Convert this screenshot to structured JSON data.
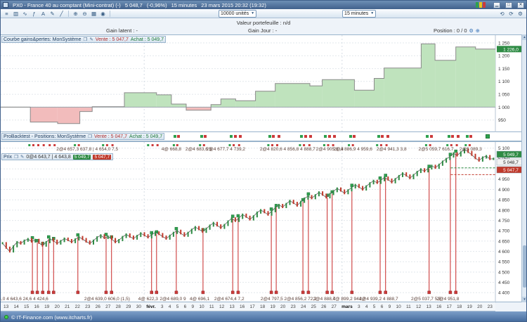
{
  "window": {
    "title": "PX0 - France 40 au comptant (Mini-contrat) (-)",
    "price": "5 048,7",
    "change": "(-0,96%)",
    "timeframe": "15 minutes",
    "datetime": "23 mars 2015 20:32 (19:32)",
    "brand_colors": [
      "#2fa14f",
      "#e8c31f",
      "#cc3b3b"
    ]
  },
  "toolbar": {
    "units_value": "10000 unités",
    "timeframe_value": "15 minutes"
  },
  "infobar": {
    "portfolio_label": "Valeur portefeuille : n/d",
    "gain_latent_label": "Gain latent : -",
    "gain_day_label": "Gain Jour : -",
    "position_label": "Position : 0 / 0"
  },
  "equity_panel": {
    "title": "Courbe gains&pertes: MonSystème",
    "vente_label": "Vente : 5 047,7",
    "achat_label": "Achat : 5 049,7"
  },
  "positions_panel": {
    "title": "ProBacktest - Positions: MonSystème",
    "vente_label": "Vente : 5 047,7",
    "achat_label": "Achat : 5 049,7",
    "markers": [
      [
        0.058,
        "g"
      ],
      [
        0.066,
        "r"
      ],
      [
        0.076,
        "r"
      ],
      [
        0.087,
        "r"
      ],
      [
        0.099,
        "r"
      ],
      [
        0.109,
        "r"
      ],
      [
        0.15,
        "g"
      ],
      [
        0.158,
        "r"
      ],
      [
        0.207,
        "g"
      ],
      [
        0.215,
        "r"
      ],
      [
        0.226,
        "r"
      ],
      [
        0.298,
        "g"
      ],
      [
        0.307,
        "r"
      ],
      [
        0.317,
        "r"
      ],
      [
        0.35,
        "g"
      ],
      [
        0.357,
        "r"
      ],
      [
        0.403,
        "g"
      ],
      [
        0.411,
        "r"
      ],
      [
        0.463,
        "g"
      ],
      [
        0.471,
        "r"
      ],
      [
        0.482,
        "r"
      ],
      [
        0.541,
        "g"
      ],
      [
        0.549,
        "r"
      ],
      [
        0.559,
        "r"
      ],
      [
        0.605,
        "g"
      ],
      [
        0.613,
        "r"
      ],
      [
        0.624,
        "r"
      ],
      [
        0.654,
        "g"
      ],
      [
        0.662,
        "r"
      ],
      [
        0.672,
        "r"
      ],
      [
        0.704,
        "g"
      ],
      [
        0.712,
        "r"
      ],
      [
        0.761,
        "g"
      ],
      [
        0.769,
        "r"
      ],
      [
        0.78,
        "r"
      ],
      [
        0.86,
        "g"
      ],
      [
        0.868,
        "r"
      ],
      [
        0.903,
        "g"
      ],
      [
        0.911,
        "r"
      ],
      [
        0.922,
        "r"
      ],
      [
        0.94,
        "g"
      ],
      [
        0.948,
        "r"
      ]
    ]
  },
  "price_panel": {
    "title": "Prix",
    "quote": "0@4 643,7 | 4 643,8",
    "bid_badge": "5 047,7",
    "ask_badge": "5 049,7"
  },
  "status": {
    "copyright": "© IT-Finance.com (www.itcharts.fr)"
  },
  "chart_data": [
    {
      "type": "area",
      "title": "Courbe gains&pertes: MonSystème",
      "ylim": [
        900,
        1280
      ],
      "baseline": 1000,
      "grid": [
        950,
        1000,
        1050,
        1100,
        1150,
        1200,
        1250
      ],
      "yvals": [
        1250,
        1200,
        1150,
        1100,
        1050,
        1000,
        950
      ],
      "ylabels": [
        "1 250",
        "1 200",
        "1 150",
        "1 100",
        "1 050",
        "1 000",
        "950"
      ],
      "vgrid": [
        0.29,
        0.69
      ],
      "pos_color": "#bfe3bd",
      "neg_color": "#f2bcbc",
      "line_color": "#8a8a8a",
      "last_value": 1226,
      "last_label": "1 226,0",
      "steps": [
        [
          0,
          1000
        ],
        [
          0.06,
          1000
        ],
        [
          0.06,
          942
        ],
        [
          0.115,
          942
        ],
        [
          0.115,
          936
        ],
        [
          0.16,
          936
        ],
        [
          0.16,
          983
        ],
        [
          0.185,
          983
        ],
        [
          0.185,
          1002
        ],
        [
          0.25,
          1002
        ],
        [
          0.25,
          1056
        ],
        [
          0.315,
          1056
        ],
        [
          0.315,
          1048
        ],
        [
          0.345,
          1048
        ],
        [
          0.345,
          1012
        ],
        [
          0.375,
          1012
        ],
        [
          0.375,
          988
        ],
        [
          0.425,
          988
        ],
        [
          0.425,
          1010
        ],
        [
          0.445,
          1010
        ],
        [
          0.445,
          1032
        ],
        [
          0.475,
          1032
        ],
        [
          0.475,
          1025
        ],
        [
          0.515,
          1025
        ],
        [
          0.515,
          1062
        ],
        [
          0.555,
          1062
        ],
        [
          0.555,
          1092
        ],
        [
          0.625,
          1092
        ],
        [
          0.625,
          1083
        ],
        [
          0.65,
          1083
        ],
        [
          0.65,
          1107
        ],
        [
          0.715,
          1107
        ],
        [
          0.715,
          1066
        ],
        [
          0.755,
          1066
        ],
        [
          0.755,
          1112
        ],
        [
          0.775,
          1112
        ],
        [
          0.775,
          1152
        ],
        [
          0.85,
          1152
        ],
        [
          0.85,
          1246
        ],
        [
          0.878,
          1246
        ],
        [
          0.878,
          1182
        ],
        [
          0.92,
          1182
        ],
        [
          0.92,
          1234
        ],
        [
          0.96,
          1234
        ],
        [
          0.96,
          1226
        ],
        [
          1,
          1226
        ]
      ]
    },
    {
      "type": "candlestick",
      "title": "Prix — France 40 au comptant (Mini-contrat), 15 minutes",
      "ylim": [
        4350,
        5130
      ],
      "grid": [
        4400,
        4450,
        4500,
        4550,
        4600,
        4650,
        4700,
        4750,
        4800,
        4850,
        4900,
        4950,
        5000,
        5050,
        5100
      ],
      "yvals": [
        5100,
        5050,
        5000,
        4950,
        4900,
        4850,
        4800,
        4750,
        4700,
        4650,
        4600,
        4550,
        4500,
        4450,
        4400
      ],
      "ylabels": [
        "5 100",
        "5 050",
        "5 000",
        "4 950",
        "4 900",
        "4 850",
        "4 800",
        "4 750",
        "4 700",
        "4 650",
        "4 600",
        "4 550",
        "4 500",
        "4 450",
        "4 400"
      ],
      "vgrid": [
        0.29,
        0.69
      ],
      "up_color": "#2e8b44",
      "down_color": "#c0392b",
      "closes": [
        4640,
        4618,
        4600,
        4625,
        4645,
        4638,
        4652,
        4660,
        4648,
        4656,
        4642,
        4628,
        4645,
        4660,
        4652,
        4638,
        4650,
        4662,
        4655,
        4645,
        4658,
        4670,
        4660,
        4648,
        4638,
        4652,
        4668,
        4678,
        4665,
        4672,
        4660,
        4645,
        4655,
        4670,
        4682,
        4672,
        4662,
        4675,
        4688,
        4678,
        4668,
        4680,
        4692,
        4684,
        4672,
        4662,
        4676,
        4690,
        4700,
        4688,
        4676,
        4690,
        4705,
        4718,
        4708,
        4695,
        4710,
        4725,
        4738,
        4726,
        4714,
        4728,
        4745,
        4760,
        4748,
        4762,
        4778,
        4768,
        4755,
        4770,
        4788,
        4800,
        4790,
        4778,
        4795,
        4812,
        4825,
        4815,
        4830,
        4845,
        4835,
        4822,
        4840,
        4856,
        4868,
        4858,
        4872,
        4886,
        4875,
        4862,
        4878,
        4892,
        4905,
        4895,
        4882,
        4896,
        4910,
        4922,
        4912,
        4900,
        4915,
        4930,
        4942,
        4932,
        4945,
        4958,
        4948,
        4935,
        4950,
        4965,
        4978,
        4968,
        4955,
        4970,
        4985,
        4998,
        4988,
        5002,
        5015,
        5005,
        5020,
        5035,
        5048,
        5060,
        5075,
        5065,
        5080,
        5095,
        5082,
        5068,
        5052,
        5040,
        5055,
        5062,
        5048,
        5049
      ],
      "trade_lines": [
        0.064,
        0.074,
        0.085,
        0.097,
        0.107,
        0.156,
        0.213,
        0.224,
        0.305,
        0.315,
        0.355,
        0.409,
        0.469,
        0.48,
        0.547,
        0.557,
        0.611,
        0.622,
        0.66,
        0.67,
        0.71,
        0.767,
        0.778,
        0.866,
        0.909,
        0.92
      ],
      "trade_floor": 4405,
      "dashed": [
        {
          "v": 5005,
          "color": "#2e8b44"
        },
        {
          "v": 4972,
          "color": "#c0392b"
        }
      ],
      "badges": [
        {
          "text": "5 049,7",
          "bg": "#2e8b44",
          "fg": "#ffffff"
        },
        {
          "text": "5 048,7",
          "bg": "#f2f2f2",
          "fg": "#222222"
        },
        {
          "text": "5 047,7",
          "bg": "#c0392b",
          "fg": "#ffffff"
        }
      ],
      "top_annotations": [
        {
          "x": 0.175,
          "text": "2@4 657,3 637,8 | 4 654,0 7,5"
        },
        {
          "x": 0.345,
          "text": "4@ 668,8"
        },
        {
          "x": 0.4,
          "text": "2@4 683,6 5"
        },
        {
          "x": 0.455,
          "text": "2@4 677,7 4 739,2"
        },
        {
          "x": 0.58,
          "text": "2@4 820,6 4 856,8 4 888,7"
        },
        {
          "x": 0.665,
          "text": "2@4 905,8 ,3"
        },
        {
          "x": 0.712,
          "text": "2@4 886,9 4 959,6"
        },
        {
          "x": 0.79,
          "text": "2@4 941,3 3,8"
        },
        {
          "x": 0.88,
          "text": "2@5 059,7 616,7"
        },
        {
          "x": 0.95,
          "text": "2@5 089,3"
        }
      ],
      "bottom_annotations": [
        {
          "x": 0.03,
          "text": "4@4 654,0 4 643,6 24,6 4 424,6"
        },
        {
          "x": 0.215,
          "text": "2@4 639,0 606,0 (1,5)"
        },
        {
          "x": 0.298,
          "text": "4@ 622,3"
        },
        {
          "x": 0.348,
          "text": "2@4 689,0 9"
        },
        {
          "x": 0.402,
          "text": "4@ 696,1"
        },
        {
          "x": 0.462,
          "text": "2@4 674,4 7,2"
        },
        {
          "x": 0.548,
          "text": "2@4 797,5"
        },
        {
          "x": 0.606,
          "text": "2@4 856,2 72,2"
        },
        {
          "x": 0.654,
          "text": "2@4 888,7"
        },
        {
          "x": 0.704,
          "text": "4@ 899,2 944,7"
        },
        {
          "x": 0.764,
          "text": "2@4 939,2 4 888,7"
        },
        {
          "x": 0.86,
          "text": "2@5 037,7 5,5"
        },
        {
          "x": 0.904,
          "text": "2@4 951,8"
        }
      ],
      "xaxis": [
        "13",
        "14",
        "15",
        "16",
        "19",
        "20",
        "21",
        "22",
        "23",
        "26",
        "27",
        "28",
        "29",
        "30",
        "févr.",
        "3",
        "4",
        "5",
        "6",
        "9",
        "10",
        "11",
        "12",
        "13",
        "16",
        "17",
        "18",
        "19",
        "20",
        "23",
        "24",
        "25",
        "26",
        "27",
        "mars",
        "3",
        "4",
        "5",
        "6",
        "9",
        "10",
        "11",
        "12",
        "13",
        "16",
        "17",
        "18",
        "19",
        "20",
        "23"
      ]
    }
  ]
}
